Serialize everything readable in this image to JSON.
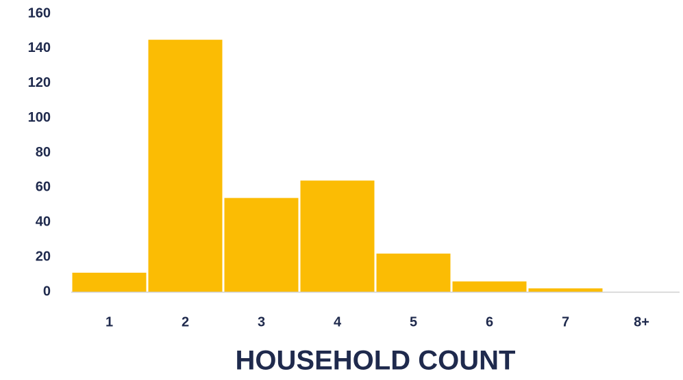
{
  "chart_data": {
    "type": "bar",
    "x_label": "HOUSEHOLD COUNT",
    "categories": [
      "1",
      "2",
      "3",
      "4",
      "5",
      "6",
      "7",
      "8+"
    ],
    "values": [
      11,
      145,
      54,
      64,
      22,
      6,
      2,
      0
    ],
    "color": "#fbbc04",
    "ylim": [
      0,
      160
    ],
    "yticks": [
      0,
      20,
      40,
      60,
      80,
      100,
      120,
      140,
      160
    ],
    "grid": false
  }
}
